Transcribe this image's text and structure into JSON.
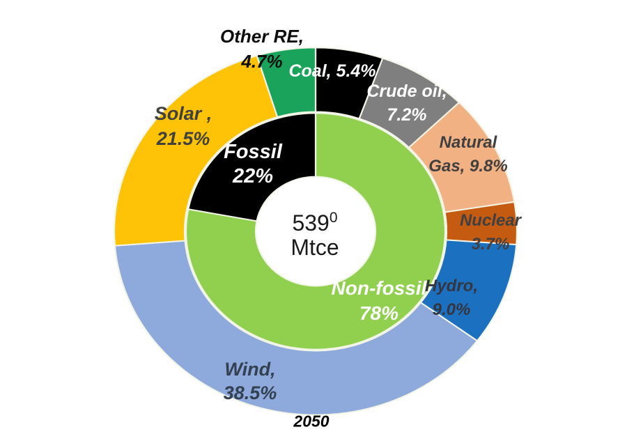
{
  "chart_data": {
    "type": "pie",
    "subtype": "two-level-donut",
    "start_angle_deg": 0,
    "direction": "clockwise",
    "legend": "none",
    "center_label": "5390 Mtce",
    "center": {
      "value_main": "539",
      "value_sup": "0",
      "unit": "Mtce"
    },
    "annotation": "2050",
    "inner": {
      "name": "aggregate-share",
      "categories": [
        "Non-fossil",
        "Fossil"
      ],
      "values": [
        78,
        22
      ],
      "colors": [
        "#90D04E",
        "#000000"
      ]
    },
    "outer": {
      "name": "fuel-share",
      "categories": [
        "Coal",
        "Crude oil",
        "Natural Gas",
        "Nuclear",
        "Hydro",
        "Wind",
        "Solar",
        "Other RE"
      ],
      "values": [
        5.4,
        7.2,
        9.8,
        3.7,
        9.0,
        38.5,
        21.5,
        4.7
      ],
      "colors": [
        "#000000",
        "#7F7F7F",
        "#F1B183",
        "#C55A11",
        "#1B71C0",
        "#8EA9DB",
        "#FEC306",
        "#19A35B"
      ]
    }
  },
  "labels": {
    "other_re": {
      "line1": "Other RE,",
      "line2": "4.7%"
    },
    "coal": {
      "line1": "Coal, 5.4%"
    },
    "crude_oil": {
      "line1": "Crude oil,",
      "line2": "7.2%"
    },
    "natural_gas": {
      "line1": "Natural",
      "line2": "Gas, 9.8%"
    },
    "nuclear": {
      "line1": "Nuclear",
      "line2": "3.7%"
    },
    "hydro": {
      "line1": "Hydro,",
      "line2": "9.0%"
    },
    "wind": {
      "line1": "Wind,",
      "line2": "38.5%"
    },
    "solar": {
      "line1": "Solar ,",
      "line2": "21.5%"
    },
    "fossil": {
      "line1": "Fossil",
      "line2": "22%"
    },
    "non_fossil": {
      "line1": "Non-fossil",
      "line2": "78%"
    }
  }
}
